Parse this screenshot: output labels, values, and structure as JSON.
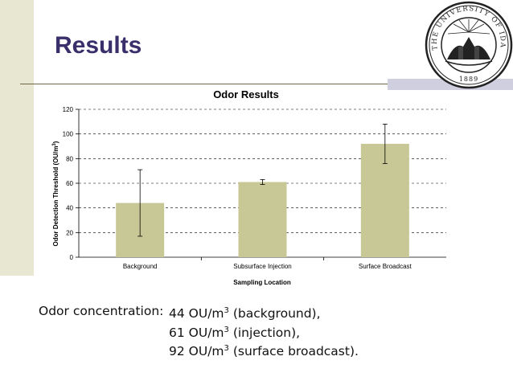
{
  "slide": {
    "title": "Results"
  },
  "seal": {
    "text_top": "THE UNIVERSITY OF IDAHO",
    "year": "1889"
  },
  "chart_data": {
    "type": "bar",
    "title": "Odor Results",
    "xlabel": "Sampling Location",
    "ylabel": "Odor Detection Threshold (OU/m3)",
    "categories": [
      "Background",
      "Subsurface Injection",
      "Surface Broadcast"
    ],
    "values": [
      44,
      61,
      92
    ],
    "error_low": [
      17,
      59,
      76
    ],
    "error_high": [
      71,
      63,
      108
    ],
    "ylim": [
      0,
      120
    ],
    "yticks": [
      0,
      20,
      40,
      60,
      80,
      100,
      120
    ],
    "grid": true,
    "bar_color": "#c8c896"
  },
  "caption": {
    "lead": "Odor concentration:",
    "lines": [
      {
        "value": "44 OU/m",
        "sup": "3",
        "rest": " (background),"
      },
      {
        "value": "61 OU/m",
        "sup": "3",
        "rest": " (injection),"
      },
      {
        "value": "92 OU/m",
        "sup": "3",
        "rest": " (surface broadcast)."
      }
    ]
  }
}
